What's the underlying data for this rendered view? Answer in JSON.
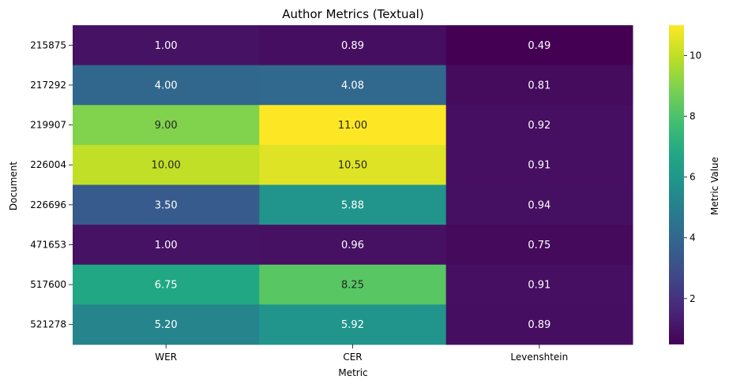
{
  "chart_data": {
    "type": "heatmap",
    "title": "Author Metrics (Textual)",
    "xlabel": "Metric",
    "ylabel": "Document",
    "x_categories": [
      "WER",
      "CER",
      "Levenshtein"
    ],
    "y_categories": [
      "215875",
      "217292",
      "219907",
      "226004",
      "226696",
      "471653",
      "517600",
      "521278"
    ],
    "values": [
      [
        1.0,
        0.89,
        0.49
      ],
      [
        4.0,
        4.08,
        0.81
      ],
      [
        9.0,
        11.0,
        0.92
      ],
      [
        10.0,
        10.5,
        0.91
      ],
      [
        3.5,
        5.88,
        0.94
      ],
      [
        1.0,
        0.96,
        0.75
      ],
      [
        6.75,
        8.25,
        0.91
      ],
      [
        5.2,
        5.92,
        0.89
      ]
    ],
    "value_labels": [
      [
        "1.00",
        "0.89",
        "0.49"
      ],
      [
        "4.00",
        "4.08",
        "0.81"
      ],
      [
        "9.00",
        "11.00",
        "0.92"
      ],
      [
        "10.00",
        "10.50",
        "0.91"
      ],
      [
        "3.50",
        "5.88",
        "0.94"
      ],
      [
        "1.00",
        "0.96",
        "0.75"
      ],
      [
        "6.75",
        "8.25",
        "0.91"
      ],
      [
        "5.20",
        "5.92",
        "0.89"
      ]
    ],
    "colormap": "viridis",
    "vmin": 0.49,
    "vmax": 11.0,
    "colorbar": {
      "label": "Metric Value",
      "ticks": [
        "2",
        "4",
        "6",
        "8",
        "10"
      ]
    }
  }
}
